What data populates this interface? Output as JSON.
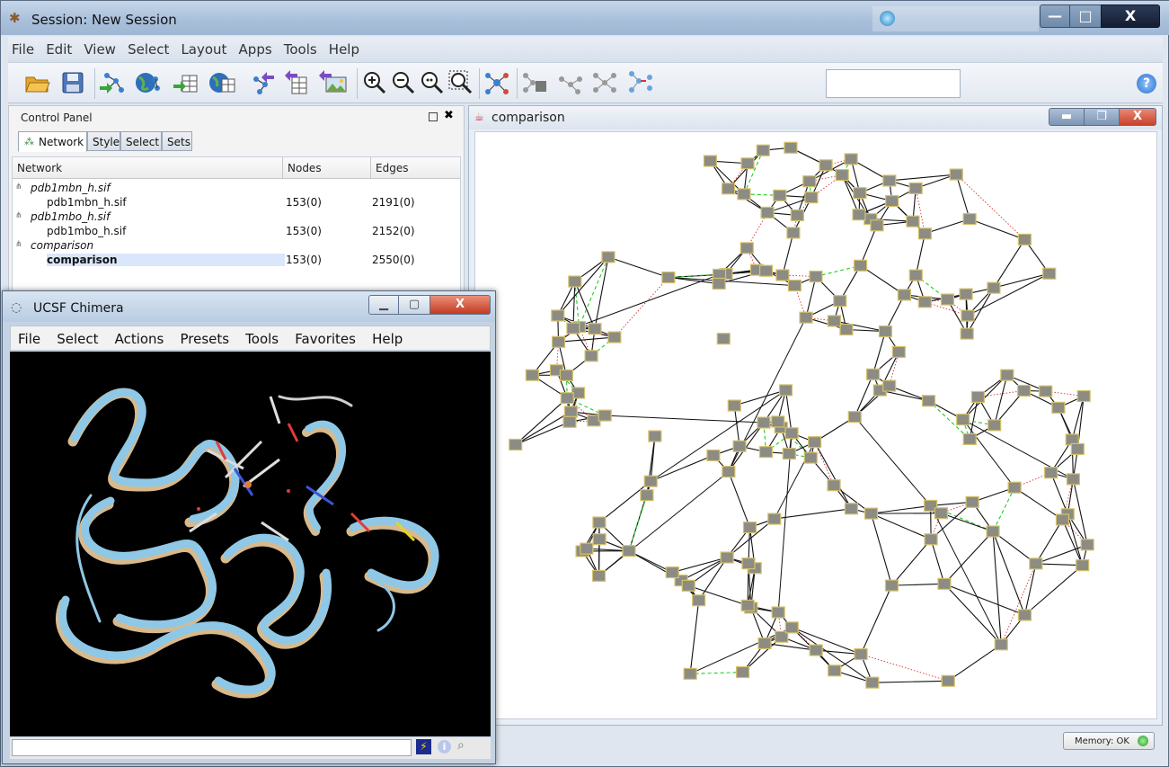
{
  "app": {
    "title": "Session: New Session",
    "logo_icon": "cytoscape-logo-icon",
    "window_controls": {
      "minimize": "—",
      "maximize": "□",
      "close": "X"
    }
  },
  "menubar": [
    "File",
    "Edit",
    "View",
    "Select",
    "Layout",
    "Apps",
    "Tools",
    "Help"
  ],
  "toolbar": {
    "buttons": [
      "open-session-icon",
      "save-session-icon",
      "import-network-file-icon",
      "import-network-web-icon",
      "import-table-file-icon",
      "import-table-web-icon",
      "export-network-icon",
      "export-table-icon",
      "export-image-icon",
      "zoom-in-icon",
      "zoom-out-icon",
      "zoom-selected-icon",
      "zoom-fit-icon",
      "apply-layout-icon",
      "hide-selected-icon",
      "show-all-icon",
      "first-neighbors-icon",
      "new-network-from-selection-icon"
    ],
    "search_value": "",
    "help_label": "?"
  },
  "control_panel": {
    "title": "Control Panel",
    "float_label": "□",
    "close_label": "✖",
    "tabs": [
      "Network",
      "Style",
      "Select",
      "Sets"
    ],
    "active_tab": "Network",
    "columns": [
      "Network",
      "Nodes",
      "Edges"
    ],
    "rows": [
      {
        "type": "parent",
        "name": "pdb1mbn_h.sif",
        "nodes": "",
        "edges": ""
      },
      {
        "type": "child",
        "name": "pdb1mbn_h.sif",
        "nodes": "153(0)",
        "edges": "2191(0)"
      },
      {
        "type": "parent",
        "name": "pdb1mbo_h.sif",
        "nodes": "",
        "edges": ""
      },
      {
        "type": "child",
        "name": "pdb1mbo_h.sif",
        "nodes": "153(0)",
        "edges": "2152(0)"
      },
      {
        "type": "parent",
        "name": "comparison",
        "nodes": "",
        "edges": ""
      },
      {
        "type": "child",
        "name": "comparison",
        "nodes": "153(0)",
        "edges": "2550(0)",
        "selected": true
      }
    ]
  },
  "network_view": {
    "title": "comparison",
    "node_color": "#8c8c84",
    "node_border": "#d6c26a",
    "edge_colors": {
      "shared": "#111111",
      "only_first": "#22cc22",
      "only_second": "#d63030"
    }
  },
  "status": {
    "memory_label": "Memory: OK",
    "memory_color": "#22aa22"
  },
  "chimera": {
    "title": "UCSF Chimera",
    "menubar": [
      "File",
      "Select",
      "Actions",
      "Presets",
      "Tools",
      "Favorites",
      "Help"
    ],
    "command_value": "",
    "structure_colors": {
      "model_a": "#8fc8e6",
      "model_b": "#d8b98c"
    }
  }
}
